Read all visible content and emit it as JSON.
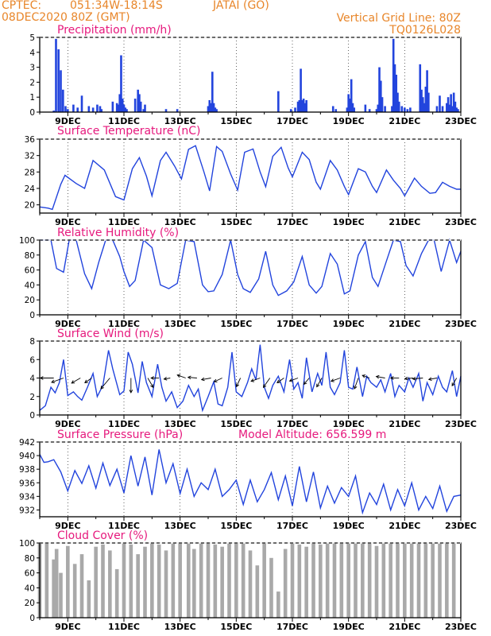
{
  "header": {
    "source": "CPTEC:",
    "coords": "051:34W-18:14S",
    "station": "JATAI (GO)",
    "run": "08DEC2020 80Z (GMT)",
    "grid_note": "Vertical Grid Line: 80Z",
    "model": "TQ0126L028"
  },
  "model_altitude": "Model Altitude: 656.599 m",
  "colors": {
    "header": "#e8862a",
    "titles": "#e6197d",
    "series": "#2244dd",
    "cloud": "#a9a9a9",
    "frame": "#000000"
  },
  "x_axis": {
    "start_day": 8,
    "end_day": 23,
    "tick_labels": [
      "9DEC",
      "11DEC",
      "13DEC",
      "15DEC",
      "17DEC",
      "19DEC",
      "21DEC",
      "23DEC"
    ],
    "tick_days": [
      9,
      11,
      13,
      15,
      17,
      19,
      21,
      23
    ]
  },
  "chart_data": [
    {
      "type": "bar",
      "title": "Precipitation (mm/h)",
      "ylim": [
        0,
        5
      ],
      "yticks": [
        0,
        1,
        2,
        3,
        4,
        5
      ],
      "days": [
        8.5,
        8.58,
        8.67,
        8.75,
        8.83,
        8.92,
        9.0,
        9.2,
        9.35,
        9.5,
        9.75,
        9.9,
        10.05,
        10.15,
        10.2,
        10.6,
        10.75,
        10.8,
        10.85,
        10.9,
        10.95,
        11.0,
        11.05,
        11.1,
        11.4,
        11.5,
        11.55,
        11.6,
        11.7,
        11.75,
        12.5,
        12.9,
        14.0,
        14.05,
        14.1,
        14.15,
        14.2,
        14.25,
        14.3,
        16.5,
        16.95,
        17.1,
        17.2,
        17.25,
        17.3,
        17.35,
        17.4,
        17.45,
        17.5,
        18.45,
        18.55,
        18.95,
        19.0,
        19.05,
        19.1,
        19.15,
        19.2,
        19.6,
        19.75,
        20.0,
        20.05,
        20.1,
        20.15,
        20.2,
        20.3,
        20.55,
        20.6,
        20.65,
        20.7,
        20.75,
        20.8,
        20.9,
        21.0,
        21.1,
        21.2,
        21.55,
        21.6,
        21.65,
        21.7,
        21.75,
        21.8,
        21.85,
        22.15,
        22.25,
        22.35,
        22.5,
        22.55,
        22.6,
        22.65,
        22.7,
        22.75,
        22.8,
        22.85,
        22.9
      ],
      "values": [
        0.1,
        4.9,
        4.2,
        2.8,
        1.5,
        0.4,
        0.2,
        0.5,
        0.3,
        1.1,
        0.4,
        0.3,
        0.5,
        0.4,
        0.2,
        0.7,
        0.6,
        0.5,
        1.2,
        3.8,
        0.9,
        0.5,
        0.3,
        0.2,
        0.9,
        1.5,
        1.2,
        0.7,
        0.2,
        0.5,
        0.2,
        0.2,
        0.4,
        0.8,
        0.6,
        2.7,
        0.6,
        0.3,
        0.2,
        1.4,
        0.2,
        0.3,
        0.7,
        0.8,
        2.9,
        0.8,
        0.9,
        0.6,
        0.8,
        0.4,
        0.2,
        0.3,
        1.2,
        0.9,
        2.2,
        0.6,
        0.3,
        0.5,
        0.2,
        0.2,
        0.5,
        3.0,
        2.1,
        1.0,
        0.4,
        0.4,
        4.9,
        3.2,
        2.5,
        1.3,
        0.7,
        0.4,
        0.3,
        0.2,
        0.3,
        3.2,
        1.5,
        1.0,
        0.6,
        1.7,
        2.8,
        1.3,
        0.4,
        1.1,
        0.4,
        0.6,
        1.0,
        0.5,
        1.2,
        0.4,
        1.3,
        0.7,
        0.3,
        0.2
      ]
    },
    {
      "type": "line",
      "title": "Surface Temperature (nC)",
      "ylim": [
        18,
        36
      ],
      "yticks": [
        20,
        24,
        28,
        32,
        36
      ],
      "days": [
        8.0,
        8.3,
        8.45,
        8.75,
        8.9,
        9.3,
        9.6,
        9.9,
        10.3,
        10.7,
        11.0,
        11.3,
        11.55,
        11.8,
        12.0,
        12.3,
        12.5,
        12.8,
        13.05,
        13.3,
        13.55,
        13.85,
        14.05,
        14.3,
        14.5,
        14.8,
        15.05,
        15.3,
        15.6,
        15.85,
        16.05,
        16.3,
        16.6,
        16.85,
        17.0,
        17.35,
        17.6,
        17.85,
        18.0,
        18.35,
        18.6,
        18.85,
        19.0,
        19.35,
        19.6,
        19.85,
        20.0,
        20.35,
        20.6,
        20.85,
        21.0,
        21.35,
        21.6,
        21.9,
        22.1,
        22.35,
        22.6,
        22.85,
        23.0
      ],
      "values": [
        19.5,
        19.2,
        18.9,
        25.0,
        27.2,
        25.2,
        24.0,
        30.8,
        28.5,
        22.0,
        21.2,
        28.8,
        31.5,
        27.0,
        22.2,
        30.8,
        32.8,
        29.5,
        26.3,
        33.5,
        34.4,
        28.0,
        23.4,
        34.2,
        33.0,
        27.5,
        23.6,
        32.8,
        33.6,
        28.0,
        24.4,
        31.8,
        34.0,
        29.0,
        26.8,
        32.8,
        31.0,
        25.5,
        23.8,
        30.8,
        28.5,
        24.5,
        22.5,
        28.8,
        28.0,
        24.5,
        23.0,
        28.5,
        26.0,
        24.0,
        22.2,
        26.5,
        24.5,
        22.8,
        23.0,
        25.5,
        24.5,
        23.8,
        23.8
      ]
    },
    {
      "type": "line",
      "title": "Relative Humidity (%)",
      "ylim": [
        0,
        100
      ],
      "yticks": [
        0,
        20,
        40,
        60,
        80,
        100
      ],
      "days": [
        8.0,
        8.4,
        8.6,
        8.85,
        9.05,
        9.3,
        9.6,
        9.85,
        10.1,
        10.35,
        10.6,
        10.85,
        11.0,
        11.2,
        11.4,
        11.7,
        12.0,
        12.3,
        12.6,
        12.9,
        13.2,
        13.5,
        13.8,
        14.0,
        14.2,
        14.5,
        14.8,
        15.05,
        15.25,
        15.5,
        15.8,
        16.05,
        16.3,
        16.5,
        16.8,
        17.05,
        17.35,
        17.6,
        17.85,
        18.05,
        18.35,
        18.6,
        18.85,
        19.05,
        19.35,
        19.6,
        19.85,
        20.05,
        20.35,
        20.6,
        20.85,
        21.05,
        21.3,
        21.6,
        21.85,
        22.05,
        22.3,
        22.6,
        22.85,
        23.0
      ],
      "values": [
        100,
        100,
        62,
        57,
        100,
        100,
        55,
        35,
        70,
        100,
        100,
        78,
        58,
        38,
        46,
        100,
        90,
        40,
        35,
        42,
        100,
        98,
        40,
        31,
        32,
        54,
        100,
        54,
        35,
        30,
        48,
        85,
        40,
        26,
        32,
        44,
        78,
        40,
        29,
        38,
        82,
        68,
        28,
        32,
        80,
        98,
        50,
        38,
        72,
        100,
        98,
        66,
        52,
        82,
        100,
        100,
        58,
        100,
        70,
        85
      ]
    },
    {
      "type": "line",
      "title": "Surface Wind (m/s)",
      "ylim": [
        0,
        8
      ],
      "yticks": [
        0,
        2,
        4,
        6,
        8
      ],
      "days": [
        8.0,
        8.2,
        8.4,
        8.55,
        8.7,
        8.85,
        9.0,
        9.2,
        9.35,
        9.5,
        9.7,
        9.9,
        10.05,
        10.25,
        10.45,
        10.6,
        10.85,
        11.0,
        11.15,
        11.3,
        11.5,
        11.65,
        11.8,
        12.0,
        12.2,
        12.35,
        12.5,
        12.7,
        12.9,
        13.1,
        13.3,
        13.5,
        13.65,
        13.8,
        14.0,
        14.2,
        14.35,
        14.5,
        14.7,
        14.85,
        15.0,
        15.2,
        15.4,
        15.55,
        15.7,
        15.85,
        16.0,
        16.15,
        16.3,
        16.5,
        16.7,
        16.9,
        17.05,
        17.2,
        17.35,
        17.5,
        17.7,
        17.9,
        18.05,
        18.2,
        18.35,
        18.5,
        18.7,
        18.85,
        19.0,
        19.15,
        19.3,
        19.5,
        19.65,
        19.8,
        20.0,
        20.15,
        20.3,
        20.5,
        20.65,
        20.8,
        21.0,
        21.15,
        21.3,
        21.5,
        21.65,
        21.8,
        22.0,
        22.2,
        22.35,
        22.5,
        22.7,
        22.85,
        23.0
      ],
      "values": [
        0.5,
        1.0,
        3.0,
        2.4,
        3.5,
        6.0,
        2.1,
        2.5,
        2.0,
        1.6,
        3.0,
        4.5,
        2.0,
        3.2,
        7.0,
        5.0,
        2.2,
        2.6,
        6.8,
        5.5,
        2.4,
        5.8,
        3.5,
        2.0,
        5.5,
        3.0,
        1.5,
        2.5,
        0.8,
        1.5,
        3.2,
        2.0,
        2.8,
        0.5,
        2.0,
        3.6,
        1.2,
        1.0,
        3.0,
        6.8,
        2.5,
        2.0,
        3.5,
        5.0,
        3.8,
        7.6,
        3.0,
        1.8,
        3.2,
        4.2,
        2.5,
        6.0,
        2.8,
        3.5,
        1.8,
        6.2,
        2.5,
        4.5,
        3.2,
        6.8,
        3.0,
        2.2,
        3.5,
        7.0,
        3.0,
        2.8,
        5.2,
        2.0,
        4.2,
        3.5,
        3.0,
        3.8,
        2.5,
        4.5,
        2.0,
        3.2,
        2.5,
        4.0,
        3.0,
        4.5,
        1.5,
        3.5,
        2.2,
        4.2,
        3.0,
        2.5,
        4.8,
        2.0,
        4.2
      ],
      "wind_barbs": [
        {
          "day": 8.5,
          "speed": 4.2,
          "dir_deg": 180
        },
        {
          "day": 8.85,
          "speed": 4.0,
          "dir_deg": 200
        },
        {
          "day": 9.45,
          "speed": 3.2,
          "dir_deg": 210
        },
        {
          "day": 9.85,
          "speed": 2.6,
          "dir_deg": 215
        },
        {
          "day": 10.5,
          "speed": 4.4,
          "dir_deg": 230
        },
        {
          "day": 11.25,
          "speed": 4.6,
          "dir_deg": 270
        },
        {
          "day": 11.85,
          "speed": 3.4,
          "dir_deg": 300
        },
        {
          "day": 12.25,
          "speed": 2.5,
          "dir_deg": 180
        },
        {
          "day": 12.65,
          "speed": 2.0,
          "dir_deg": 190
        },
        {
          "day": 13.2,
          "speed": 2.8,
          "dir_deg": 160
        },
        {
          "day": 13.6,
          "speed": 2.8,
          "dir_deg": 175
        },
        {
          "day": 14.1,
          "speed": 3.0,
          "dir_deg": 190
        },
        {
          "day": 14.5,
          "speed": 2.8,
          "dir_deg": 205
        },
        {
          "day": 15.15,
          "speed": 3.0,
          "dir_deg": 245
        },
        {
          "day": 15.85,
          "speed": 3.0,
          "dir_deg": 200
        },
        {
          "day": 16.2,
          "speed": 3.6,
          "dir_deg": 235
        },
        {
          "day": 16.7,
          "speed": 2.6,
          "dir_deg": 215
        },
        {
          "day": 17.2,
          "speed": 2.8,
          "dir_deg": 200
        },
        {
          "day": 17.6,
          "speed": 2.6,
          "dir_deg": 230
        },
        {
          "day": 18.05,
          "speed": 3.2,
          "dir_deg": 240
        },
        {
          "day": 18.7,
          "speed": 3.0,
          "dir_deg": 200
        },
        {
          "day": 19.35,
          "speed": 3.6,
          "dir_deg": 250
        },
        {
          "day": 19.75,
          "speed": 2.4,
          "dir_deg": 160
        },
        {
          "day": 20.3,
          "speed": 2.8,
          "dir_deg": 170
        },
        {
          "day": 20.8,
          "speed": 2.6,
          "dir_deg": 180
        },
        {
          "day": 21.3,
          "speed": 2.6,
          "dir_deg": 185
        },
        {
          "day": 21.65,
          "speed": 3.2,
          "dir_deg": 185
        },
        {
          "day": 22.15,
          "speed": 2.6,
          "dir_deg": 190
        },
        {
          "day": 22.85,
          "speed": 2.8,
          "dir_deg": 240
        }
      ]
    },
    {
      "type": "line",
      "title": "Surface Pressure (hPa)",
      "ylim": [
        931,
        942
      ],
      "yticks": [
        932,
        934,
        936,
        938,
        940,
        942
      ],
      "days": [
        8.0,
        8.15,
        8.3,
        8.5,
        8.75,
        9.0,
        9.25,
        9.5,
        9.75,
        10.0,
        10.25,
        10.5,
        10.75,
        11.0,
        11.25,
        11.5,
        11.75,
        12.0,
        12.25,
        12.5,
        12.75,
        13.0,
        13.25,
        13.5,
        13.75,
        14.0,
        14.25,
        14.5,
        14.75,
        15.0,
        15.25,
        15.5,
        15.75,
        16.0,
        16.25,
        16.5,
        16.75,
        17.0,
        17.25,
        17.5,
        17.75,
        18.0,
        18.25,
        18.5,
        18.75,
        19.0,
        19.25,
        19.5,
        19.75,
        20.0,
        20.25,
        20.5,
        20.75,
        21.0,
        21.25,
        21.5,
        21.75,
        22.0,
        22.25,
        22.5,
        22.75,
        23.0
      ],
      "values": [
        940.2,
        939.0,
        939.1,
        939.4,
        937.6,
        934.8,
        937.8,
        935.9,
        938.5,
        935.2,
        938.9,
        935.6,
        938.0,
        934.5,
        940.0,
        935.5,
        939.8,
        934.2,
        940.9,
        936.0,
        938.8,
        934.4,
        938.0,
        934.0,
        936.0,
        935.0,
        938.0,
        934.0,
        935.0,
        936.4,
        932.8,
        936.4,
        933.2,
        935.0,
        937.5,
        933.5,
        937.0,
        932.6,
        938.4,
        933.2,
        937.6,
        932.3,
        935.5,
        933.0,
        935.3,
        934.0,
        937.0,
        931.6,
        934.5,
        932.8,
        935.8,
        932.0,
        935.0,
        932.6,
        936.0,
        932.0,
        934.0,
        932.2,
        935.5,
        931.8,
        934.0,
        934.2
      ]
    },
    {
      "type": "bar",
      "title": "Cloud Cover (%)",
      "ylim": [
        0,
        100
      ],
      "yticks": [
        0,
        20,
        40,
        60,
        80,
        100
      ],
      "color": "#a9a9a9",
      "days": [
        8.0,
        8.25,
        8.5,
        8.6,
        8.75,
        9.0,
        9.25,
        9.5,
        9.75,
        10.0,
        10.25,
        10.5,
        10.75,
        11.0,
        11.25,
        11.5,
        11.75,
        12.0,
        12.25,
        12.5,
        12.75,
        13.0,
        13.2,
        13.3,
        13.5,
        13.75,
        14.0,
        14.25,
        14.5,
        14.75,
        15.0,
        15.25,
        15.5,
        15.75,
        16.0,
        16.25,
        16.5,
        16.75,
        17.0,
        17.25,
        17.5,
        17.75,
        18.0,
        18.25,
        18.5,
        18.75,
        19.0,
        19.25,
        19.5,
        19.75,
        20.0,
        20.25,
        20.5,
        20.75,
        21.0,
        21.25,
        21.5,
        21.75,
        22.0,
        22.25,
        22.5,
        22.75
      ],
      "values": [
        100,
        100,
        78,
        92,
        60,
        96,
        72,
        85,
        50,
        95,
        98,
        90,
        65,
        100,
        98,
        85,
        95,
        100,
        98,
        90,
        100,
        100,
        0,
        100,
        92,
        100,
        100,
        98,
        95,
        100,
        100,
        100,
        90,
        70,
        100,
        80,
        35,
        92,
        100,
        98,
        95,
        100,
        98,
        100,
        100,
        100,
        100,
        100,
        100,
        100,
        96,
        100,
        100,
        100,
        100,
        100,
        100,
        100,
        100,
        100,
        100,
        100
      ]
    }
  ]
}
